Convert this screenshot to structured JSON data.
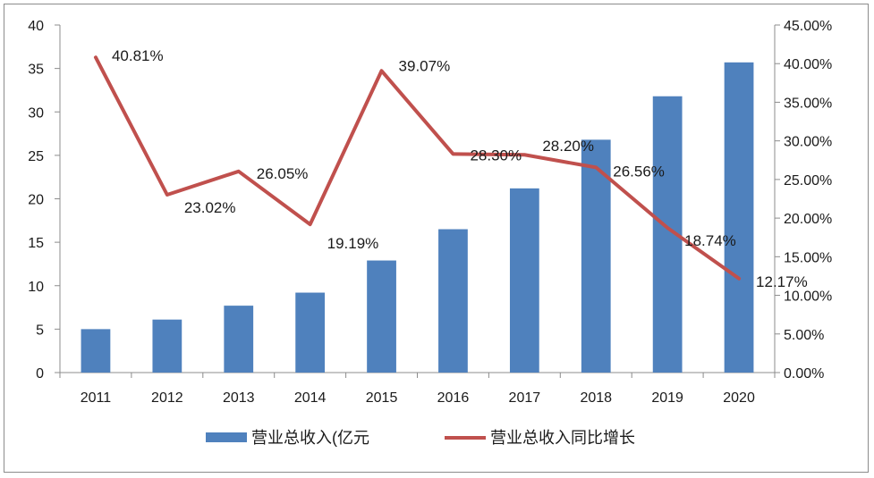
{
  "chart_data": {
    "type": "bar",
    "categories": [
      "2011",
      "2012",
      "2013",
      "2014",
      "2015",
      "2016",
      "2017",
      "2018",
      "2019",
      "2020"
    ],
    "series": [
      {
        "name": "营业总收入(亿元",
        "type": "bar",
        "axis": "left",
        "color": "#4F81BD",
        "values": [
          5.0,
          6.1,
          7.7,
          9.2,
          12.9,
          16.5,
          21.2,
          26.8,
          31.8,
          35.7
        ]
      },
      {
        "name": "营业总收入同比增长",
        "type": "line",
        "axis": "right",
        "color": "#C0504D",
        "values": [
          40.81,
          23.02,
          26.05,
          19.19,
          39.07,
          28.3,
          28.2,
          26.56,
          18.74,
          12.17
        ],
        "labels": [
          "40.81%",
          "23.02%",
          "26.05%",
          "19.19%",
          "39.07%",
          "28.30%",
          "28.20%",
          "26.56%",
          "18.74%",
          "12.17%"
        ]
      }
    ],
    "ylim": [
      0,
      40
    ],
    "y_ticks": [
      "0",
      "5",
      "10",
      "15",
      "20",
      "25",
      "30",
      "35",
      "40"
    ],
    "y2lim": [
      0,
      45
    ],
    "y2_ticks": [
      "0.00%",
      "5.00%",
      "10.00%",
      "15.00%",
      "20.00%",
      "25.00%",
      "30.00%",
      "35.00%",
      "40.00%",
      "45.00%"
    ],
    "grid": false,
    "legend": "bottom"
  }
}
